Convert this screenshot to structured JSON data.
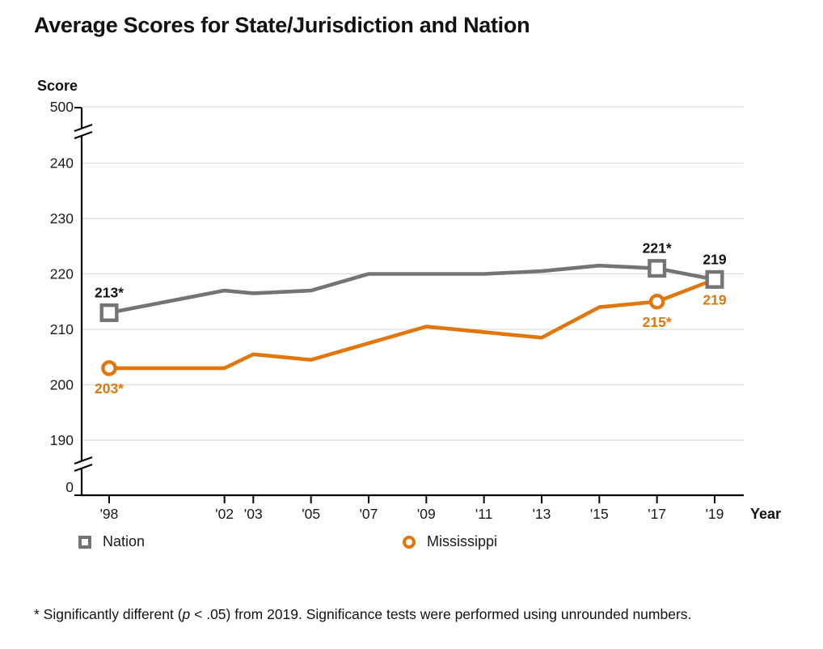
{
  "title": "Average Scores for State/Jurisdiction and Nation",
  "axes": {
    "y_label": "Score",
    "x_label": "Year",
    "y_tick_labels": [
      "500",
      "240",
      "230",
      "220",
      "210",
      "200",
      "190",
      "0"
    ],
    "x_tick_labels": [
      "'98",
      "'02",
      "'03",
      "'05",
      "'07",
      "'09",
      "'11",
      "'13",
      "'15",
      "'17",
      "'19"
    ]
  },
  "chart_data": {
    "type": "line",
    "title": "Average Scores for State/Jurisdiction and Nation",
    "xlabel": "Year",
    "ylabel": "Score",
    "x": [
      1998,
      2002,
      2003,
      2005,
      2007,
      2009,
      2011,
      2013,
      2015,
      2017,
      2019
    ],
    "x_tick_labels": [
      "'98",
      "'02",
      "'03",
      "'05",
      "'07",
      "'09",
      "'11",
      "'13",
      "'15",
      "'17",
      "'19"
    ],
    "y_ticks": [
      0,
      190,
      200,
      210,
      220,
      230,
      240,
      500
    ],
    "y_display_range": [
      185,
      245
    ],
    "axis_breaks": [
      "between 0 and 190",
      "between 240 and 500"
    ],
    "grid": "horizontal",
    "legend_position": "bottom",
    "series": [
      {
        "name": "Nation",
        "color": "#747474",
        "label_color": "#111111",
        "marker": "square",
        "label_side": "above",
        "values": [
          213,
          217,
          216.5,
          217,
          220,
          220,
          220,
          220.5,
          221.5,
          221,
          219
        ],
        "point_labels": [
          "213*",
          "",
          "",
          "",
          "",
          "",
          "",
          "",
          "",
          "221*",
          "219"
        ]
      },
      {
        "name": "Mississippi",
        "color": "#E1760B",
        "label_color": "#E1760B",
        "marker": "circle",
        "label_side": "below",
        "values": [
          203,
          203,
          205.5,
          204.5,
          207.5,
          210.5,
          209.5,
          208.5,
          214,
          215,
          219
        ],
        "point_labels": [
          "203*",
          "",
          "",
          "",
          "",
          "",
          "",
          "",
          "",
          "215*",
          "219"
        ]
      }
    ]
  },
  "legend": {
    "items": [
      {
        "label": "Nation"
      },
      {
        "label": "Mississippi"
      }
    ]
  },
  "footnote": {
    "prefix": "* Significantly different (",
    "italic": "p",
    "suffix": " < .05) from 2019. Significance tests were performed using unrounded numbers."
  }
}
